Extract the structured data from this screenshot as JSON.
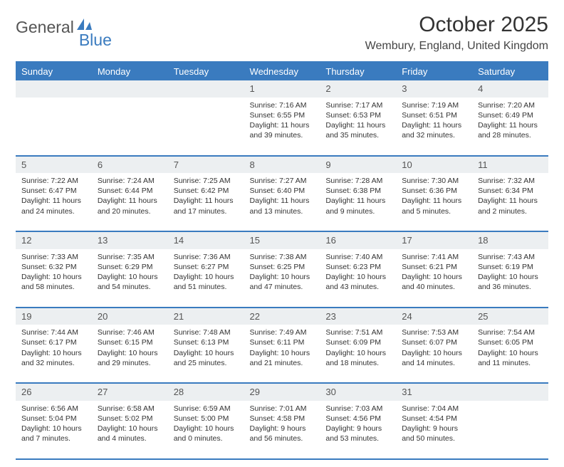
{
  "logo": {
    "wordA": "General",
    "wordB": "Blue"
  },
  "title": "October 2025",
  "location": "Wembury, England, United Kingdom",
  "colors": {
    "brand": "#3a7bbf",
    "header_bg": "#3a7bbf",
    "header_text": "#ffffff",
    "daynum_bg": "#eceff1",
    "rule": "#3a7bbf"
  },
  "weekdays": [
    "Sunday",
    "Monday",
    "Tuesday",
    "Wednesday",
    "Thursday",
    "Friday",
    "Saturday"
  ],
  "weeks": [
    {
      "nums": [
        "",
        "",
        "",
        "1",
        "2",
        "3",
        "4"
      ],
      "cells": [
        null,
        null,
        null,
        {
          "sunrise": "7:16 AM",
          "sunset": "6:55 PM",
          "daylight": "11 hours and 39 minutes."
        },
        {
          "sunrise": "7:17 AM",
          "sunset": "6:53 PM",
          "daylight": "11 hours and 35 minutes."
        },
        {
          "sunrise": "7:19 AM",
          "sunset": "6:51 PM",
          "daylight": "11 hours and 32 minutes."
        },
        {
          "sunrise": "7:20 AM",
          "sunset": "6:49 PM",
          "daylight": "11 hours and 28 minutes."
        }
      ]
    },
    {
      "nums": [
        "5",
        "6",
        "7",
        "8",
        "9",
        "10",
        "11"
      ],
      "cells": [
        {
          "sunrise": "7:22 AM",
          "sunset": "6:47 PM",
          "daylight": "11 hours and 24 minutes."
        },
        {
          "sunrise": "7:24 AM",
          "sunset": "6:44 PM",
          "daylight": "11 hours and 20 minutes."
        },
        {
          "sunrise": "7:25 AM",
          "sunset": "6:42 PM",
          "daylight": "11 hours and 17 minutes."
        },
        {
          "sunrise": "7:27 AM",
          "sunset": "6:40 PM",
          "daylight": "11 hours and 13 minutes."
        },
        {
          "sunrise": "7:28 AM",
          "sunset": "6:38 PM",
          "daylight": "11 hours and 9 minutes."
        },
        {
          "sunrise": "7:30 AM",
          "sunset": "6:36 PM",
          "daylight": "11 hours and 5 minutes."
        },
        {
          "sunrise": "7:32 AM",
          "sunset": "6:34 PM",
          "daylight": "11 hours and 2 minutes."
        }
      ]
    },
    {
      "nums": [
        "12",
        "13",
        "14",
        "15",
        "16",
        "17",
        "18"
      ],
      "cells": [
        {
          "sunrise": "7:33 AM",
          "sunset": "6:32 PM",
          "daylight": "10 hours and 58 minutes."
        },
        {
          "sunrise": "7:35 AM",
          "sunset": "6:29 PM",
          "daylight": "10 hours and 54 minutes."
        },
        {
          "sunrise": "7:36 AM",
          "sunset": "6:27 PM",
          "daylight": "10 hours and 51 minutes."
        },
        {
          "sunrise": "7:38 AM",
          "sunset": "6:25 PM",
          "daylight": "10 hours and 47 minutes."
        },
        {
          "sunrise": "7:40 AM",
          "sunset": "6:23 PM",
          "daylight": "10 hours and 43 minutes."
        },
        {
          "sunrise": "7:41 AM",
          "sunset": "6:21 PM",
          "daylight": "10 hours and 40 minutes."
        },
        {
          "sunrise": "7:43 AM",
          "sunset": "6:19 PM",
          "daylight": "10 hours and 36 minutes."
        }
      ]
    },
    {
      "nums": [
        "19",
        "20",
        "21",
        "22",
        "23",
        "24",
        "25"
      ],
      "cells": [
        {
          "sunrise": "7:44 AM",
          "sunset": "6:17 PM",
          "daylight": "10 hours and 32 minutes."
        },
        {
          "sunrise": "7:46 AM",
          "sunset": "6:15 PM",
          "daylight": "10 hours and 29 minutes."
        },
        {
          "sunrise": "7:48 AM",
          "sunset": "6:13 PM",
          "daylight": "10 hours and 25 minutes."
        },
        {
          "sunrise": "7:49 AM",
          "sunset": "6:11 PM",
          "daylight": "10 hours and 21 minutes."
        },
        {
          "sunrise": "7:51 AM",
          "sunset": "6:09 PM",
          "daylight": "10 hours and 18 minutes."
        },
        {
          "sunrise": "7:53 AM",
          "sunset": "6:07 PM",
          "daylight": "10 hours and 14 minutes."
        },
        {
          "sunrise": "7:54 AM",
          "sunset": "6:05 PM",
          "daylight": "10 hours and 11 minutes."
        }
      ]
    },
    {
      "nums": [
        "26",
        "27",
        "28",
        "29",
        "30",
        "31",
        ""
      ],
      "cells": [
        {
          "sunrise": "6:56 AM",
          "sunset": "5:04 PM",
          "daylight": "10 hours and 7 minutes."
        },
        {
          "sunrise": "6:58 AM",
          "sunset": "5:02 PM",
          "daylight": "10 hours and 4 minutes."
        },
        {
          "sunrise": "6:59 AM",
          "sunset": "5:00 PM",
          "daylight": "10 hours and 0 minutes."
        },
        {
          "sunrise": "7:01 AM",
          "sunset": "4:58 PM",
          "daylight": "9 hours and 56 minutes."
        },
        {
          "sunrise": "7:03 AM",
          "sunset": "4:56 PM",
          "daylight": "9 hours and 53 minutes."
        },
        {
          "sunrise": "7:04 AM",
          "sunset": "4:54 PM",
          "daylight": "9 hours and 50 minutes."
        },
        null
      ]
    }
  ]
}
